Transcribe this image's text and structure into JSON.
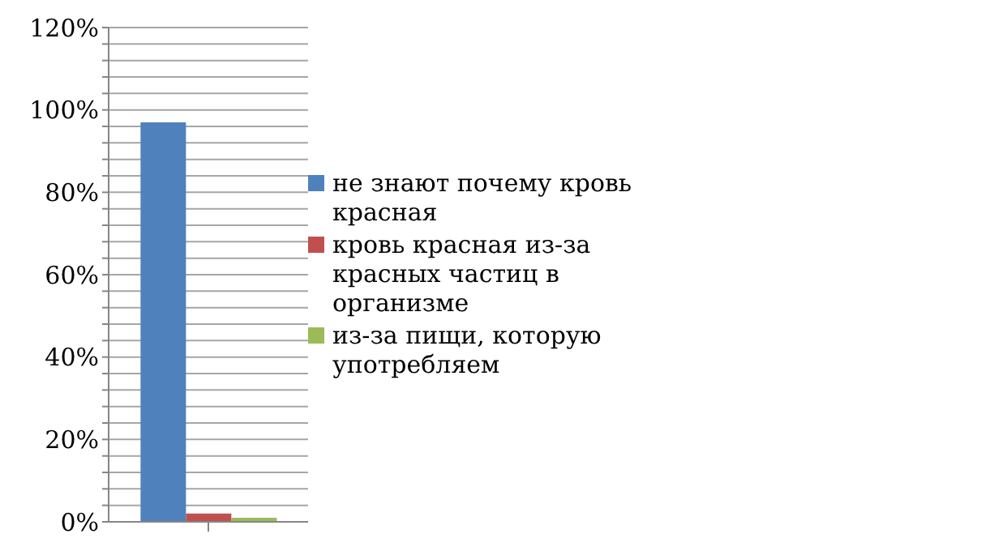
{
  "chart_data": {
    "type": "bar",
    "categories": [
      null
    ],
    "series": [
      {
        "name": "не знают почему кровь красная",
        "color": "#4f81bd",
        "values": [
          97
        ]
      },
      {
        "name": "кровь красная из-за красных частиц  в организме",
        "color": "#c0504d",
        "values": [
          2
        ]
      },
      {
        "name": "из-за пищи, которую употребляем",
        "color": "#9bbb59",
        "values": [
          1
        ]
      }
    ],
    "ylim": [
      0,
      120
    ],
    "yticks": [
      {
        "value": 0,
        "label": "0%"
      },
      {
        "value": 4,
        "label": null
      },
      {
        "value": 8,
        "label": null
      },
      {
        "value": 12,
        "label": null
      },
      {
        "value": 16,
        "label": null
      },
      {
        "value": 20,
        "label": "20%"
      },
      {
        "value": 24,
        "label": null
      },
      {
        "value": 28,
        "label": null
      },
      {
        "value": 32,
        "label": null
      },
      {
        "value": 36,
        "label": null
      },
      {
        "value": 40,
        "label": "40%"
      },
      {
        "value": 44,
        "label": null
      },
      {
        "value": 48,
        "label": null
      },
      {
        "value": 52,
        "label": null
      },
      {
        "value": 56,
        "label": null
      },
      {
        "value": 60,
        "label": "60%"
      },
      {
        "value": 64,
        "label": null
      },
      {
        "value": 68,
        "label": null
      },
      {
        "value": 72,
        "label": null
      },
      {
        "value": 76,
        "label": null
      },
      {
        "value": 80,
        "label": "80%"
      },
      {
        "value": 84,
        "label": null
      },
      {
        "value": 88,
        "label": null
      },
      {
        "value": 92,
        "label": null
      },
      {
        "value": 96,
        "label": null
      },
      {
        "value": 100,
        "label": "100%"
      },
      {
        "value": 104,
        "label": null
      },
      {
        "value": 108,
        "label": null
      },
      {
        "value": 112,
        "label": null
      },
      {
        "value": 116,
        "label": null
      },
      {
        "value": 120,
        "label": "120%"
      }
    ],
    "grid": "y",
    "legend": "right"
  }
}
